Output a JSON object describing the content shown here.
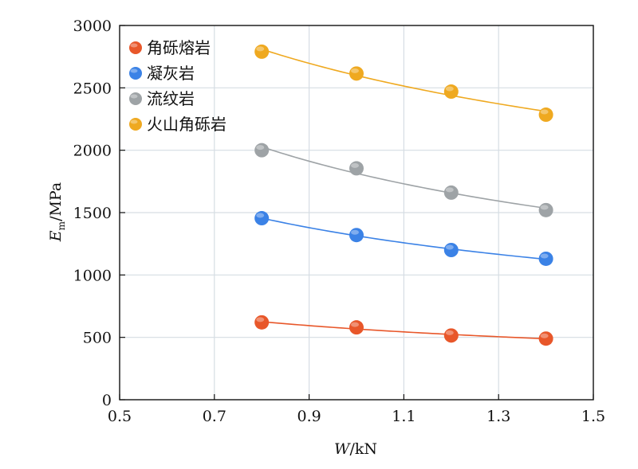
{
  "chart_data": {
    "type": "scatter",
    "xlabel_var": "W",
    "xlabel_unit": "/kN",
    "ylabel_var": "E",
    "ylabel_sub": "m",
    "ylabel_unit": "/MPa",
    "xlim": [
      0.5,
      1.5
    ],
    "ylim": [
      0,
      3000
    ],
    "xticks": [
      "0.5",
      "0.7",
      "0.9",
      "1.1",
      "1.3",
      "1.5"
    ],
    "yticks": [
      "0",
      "500",
      "1000",
      "1500",
      "2000",
      "2500",
      "3000"
    ],
    "grid": true,
    "legend_position": "top-left",
    "x": [
      0.8,
      1.0,
      1.2,
      1.4
    ],
    "series": [
      {
        "name": "角砾熔岩",
        "color": "#E8572A",
        "values": [
          620,
          580,
          515,
          490
        ]
      },
      {
        "name": "凝灰岩",
        "color": "#3B82E6",
        "values": [
          1455,
          1320,
          1200,
          1130
        ]
      },
      {
        "name": "流纹岩",
        "color": "#9EA3A6",
        "values": [
          2000,
          1855,
          1660,
          1520
        ]
      },
      {
        "name": "火山角砾岩",
        "color": "#EFA920",
        "values": [
          2790,
          2615,
          2470,
          2285
        ]
      }
    ]
  }
}
